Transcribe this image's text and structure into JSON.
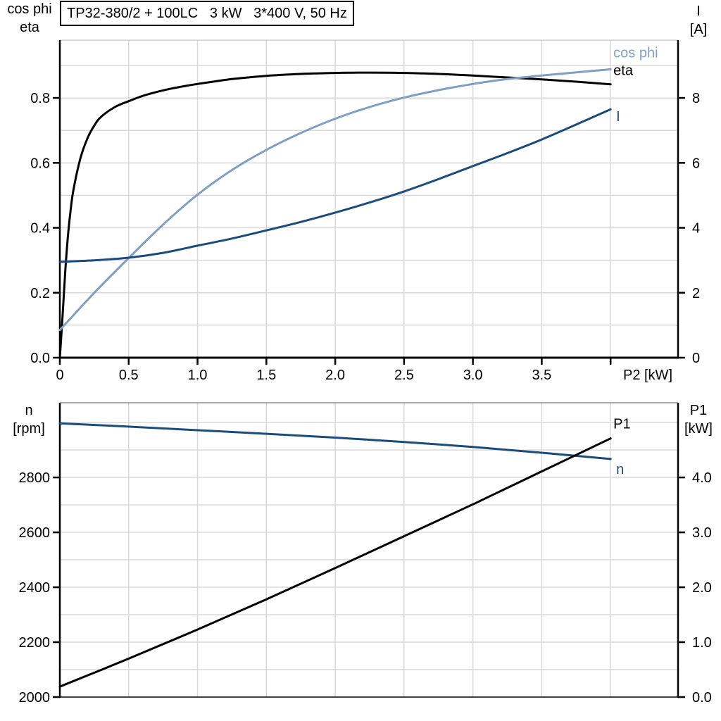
{
  "page": {
    "background": "#ffffff"
  },
  "title_box": {
    "text": "TP32-380/2 + 100LC   3 kW   3*400 V, 50 Hz"
  },
  "colors": {
    "black_curve": "#000000",
    "dark_blue": "#1a4c7d",
    "light_blue": "#7f9fc4",
    "grid": "#d9d9d9",
    "axis": "#000000",
    "frame_top_light": "#bbbbbb",
    "frame_top_dark": "#555555"
  },
  "chart_data": [
    {
      "type": "line",
      "title": "TP32-380/2 + 100LC   3 kW   3*400 V, 50 Hz",
      "x_axis": {
        "label": "P2 [kW]",
        "min": 0,
        "max": 4.49,
        "ticks": [
          {
            "v": 0,
            "label": "0"
          },
          {
            "v": 0.5,
            "label": "0.5"
          },
          {
            "v": 1.0,
            "label": "1.0"
          },
          {
            "v": 1.5,
            "label": "1.5"
          },
          {
            "v": 2.0,
            "label": "2.0"
          },
          {
            "v": 2.5,
            "label": "2.5"
          },
          {
            "v": 3.0,
            "label": "3.0"
          },
          {
            "v": 3.5,
            "label": "3.5"
          },
          {
            "v": 4.0,
            "label": ""
          }
        ],
        "grid_values": [
          0.5,
          1.0,
          1.5,
          2.0,
          2.5,
          3.0,
          3.5,
          4.0
        ]
      },
      "left_axis": {
        "title_lines": [
          "cos phi",
          "eta"
        ],
        "min": 0,
        "max": 0.978,
        "ticks": [
          {
            "v": 0.0,
            "label": "0.0"
          },
          {
            "v": 0.2,
            "label": "0.2"
          },
          {
            "v": 0.4,
            "label": "0.4"
          },
          {
            "v": 0.6,
            "label": "0.6"
          },
          {
            "v": 0.8,
            "label": "0.8"
          }
        ],
        "grid_values": [
          0.1,
          0.2,
          0.3,
          0.4,
          0.5,
          0.6,
          0.7,
          0.8,
          0.9
        ]
      },
      "right_axis": {
        "title_lines": [
          "I",
          "[A]"
        ],
        "min": 0,
        "max": 9.78,
        "ticks": [
          {
            "v": 0,
            "label": "0"
          },
          {
            "v": 2,
            "label": "2"
          },
          {
            "v": 4,
            "label": "4"
          },
          {
            "v": 6,
            "label": "6"
          },
          {
            "v": 8,
            "label": "8"
          }
        ]
      },
      "series": [
        {
          "name": "eta",
          "label": "eta",
          "axis": "left",
          "color_key": "black_curve",
          "label_color_key": "black_curve",
          "label_dx": 4,
          "label_dy": -20,
          "points": [
            [
              0,
              0
            ],
            [
              0.02,
              0.13
            ],
            [
              0.04,
              0.27
            ],
            [
              0.06,
              0.38
            ],
            [
              0.08,
              0.46
            ],
            [
              0.1,
              0.52
            ],
            [
              0.15,
              0.615
            ],
            [
              0.2,
              0.675
            ],
            [
              0.25,
              0.715
            ],
            [
              0.3,
              0.742
            ],
            [
              0.4,
              0.772
            ],
            [
              0.5,
              0.79
            ],
            [
              0.6,
              0.806
            ],
            [
              0.7,
              0.818
            ],
            [
              0.8,
              0.828
            ],
            [
              0.9,
              0.836
            ],
            [
              1.0,
              0.843
            ],
            [
              1.25,
              0.858
            ],
            [
              1.5,
              0.868
            ],
            [
              1.75,
              0.874
            ],
            [
              2.0,
              0.877
            ],
            [
              2.25,
              0.878
            ],
            [
              2.5,
              0.877
            ],
            [
              2.75,
              0.874
            ],
            [
              3.0,
              0.869
            ],
            [
              3.25,
              0.863
            ],
            [
              3.5,
              0.857
            ],
            [
              3.75,
              0.85
            ],
            [
              4.0,
              0.842
            ]
          ]
        },
        {
          "name": "cos_phi",
          "label": "cos phi",
          "axis": "left",
          "color_key": "light_blue",
          "label_color_key": "light_blue",
          "label_dx": 4,
          "label_dy": -24,
          "points": [
            [
              0,
              0.085
            ],
            [
              0.25,
              0.2
            ],
            [
              0.5,
              0.307
            ],
            [
              0.75,
              0.41
            ],
            [
              1.0,
              0.502
            ],
            [
              1.25,
              0.578
            ],
            [
              1.5,
              0.64
            ],
            [
              1.75,
              0.692
            ],
            [
              2.0,
              0.736
            ],
            [
              2.25,
              0.772
            ],
            [
              2.5,
              0.801
            ],
            [
              2.75,
              0.824
            ],
            [
              3.0,
              0.843
            ],
            [
              3.25,
              0.858
            ],
            [
              3.5,
              0.869
            ],
            [
              3.75,
              0.879
            ],
            [
              4.0,
              0.888
            ]
          ]
        },
        {
          "name": "I",
          "label": "I",
          "axis": "right",
          "color_key": "dark_blue",
          "label_color_key": "dark_blue",
          "label_dx": 8,
          "label_dy": 10,
          "points": [
            [
              0,
              2.95
            ],
            [
              0.25,
              3.0
            ],
            [
              0.5,
              3.08
            ],
            [
              0.75,
              3.23
            ],
            [
              1.0,
              3.45
            ],
            [
              1.25,
              3.67
            ],
            [
              1.5,
              3.92
            ],
            [
              1.75,
              4.18
            ],
            [
              2.0,
              4.47
            ],
            [
              2.25,
              4.78
            ],
            [
              2.5,
              5.12
            ],
            [
              2.75,
              5.5
            ],
            [
              3.0,
              5.9
            ],
            [
              3.25,
              6.3
            ],
            [
              3.5,
              6.72
            ],
            [
              3.75,
              7.18
            ],
            [
              4.0,
              7.65
            ]
          ]
        }
      ]
    },
    {
      "type": "line",
      "title": "",
      "x_axis": {
        "label": "",
        "min": 0,
        "max": 4.49,
        "ticks": [],
        "grid_values": [
          0.5,
          1.0,
          1.5,
          2.0,
          2.5,
          3.0,
          3.5,
          4.0
        ]
      },
      "left_axis": {
        "title_lines": [
          "n",
          "[rpm]"
        ],
        "min": 2000,
        "max": 3072,
        "ticks": [
          {
            "v": 2000,
            "label": "2000"
          },
          {
            "v": 2200,
            "label": "2200"
          },
          {
            "v": 2400,
            "label": "2400"
          },
          {
            "v": 2600,
            "label": "2600"
          },
          {
            "v": 2800,
            "label": "2800"
          }
        ],
        "grid_values": [
          2100,
          2200,
          2300,
          2400,
          2500,
          2600,
          2700,
          2800,
          2900,
          3000
        ]
      },
      "right_axis": {
        "title_lines": [
          "P1",
          "[kW]"
        ],
        "min": 0,
        "max": 5.36,
        "ticks": [
          {
            "v": 0.0,
            "label": "0.0"
          },
          {
            "v": 1.0,
            "label": "1.0"
          },
          {
            "v": 2.0,
            "label": "2.0"
          },
          {
            "v": 3.0,
            "label": "3.0"
          },
          {
            "v": 4.0,
            "label": "4.0"
          }
        ]
      },
      "series": [
        {
          "name": "n",
          "label": "n",
          "axis": "left",
          "color_key": "dark_blue",
          "label_color_key": "dark_blue",
          "label_dx": 8,
          "label_dy": 14,
          "points": [
            [
              0,
              2997
            ],
            [
              0.5,
              2985
            ],
            [
              1.0,
              2972
            ],
            [
              1.5,
              2959
            ],
            [
              2.0,
              2945
            ],
            [
              2.5,
              2929
            ],
            [
              3.0,
              2911
            ],
            [
              3.5,
              2890
            ],
            [
              4.0,
              2867
            ]
          ]
        },
        {
          "name": "P1",
          "label": "P1",
          "axis": "right",
          "color_key": "black_curve",
          "label_color_key": "black_curve",
          "label_dx": 4,
          "label_dy": -21,
          "points": [
            [
              0,
              0.19
            ],
            [
              0.5,
              0.7
            ],
            [
              1.0,
              1.23
            ],
            [
              1.5,
              1.78
            ],
            [
              2.0,
              2.35
            ],
            [
              2.5,
              2.93
            ],
            [
              3.0,
              3.51
            ],
            [
              3.5,
              4.11
            ],
            [
              4.0,
              4.71
            ]
          ]
        }
      ]
    }
  ]
}
